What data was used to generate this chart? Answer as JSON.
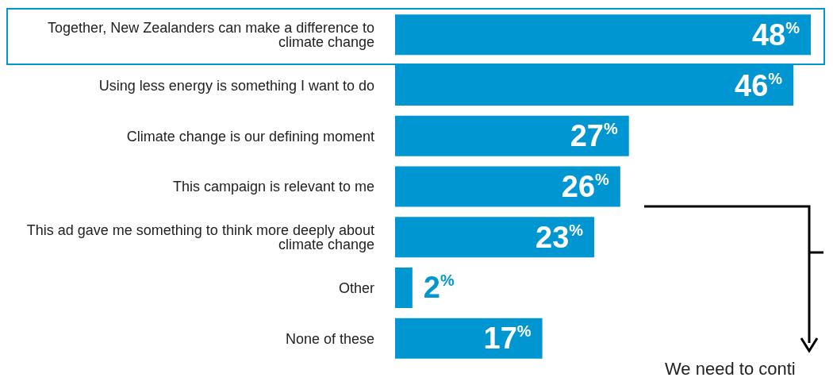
{
  "chart_data": {
    "type": "bar",
    "orientation": "horizontal",
    "categories": [
      "Together, New Zealanders can make a difference to climate change",
      "Using less energy is something I want to do",
      "Climate change is our defining moment",
      "This campaign is relevant to me",
      "This ad gave me something to think more deeply about climate change",
      "Other",
      "None of these"
    ],
    "values": [
      48,
      46,
      27,
      26,
      23,
      2,
      17
    ],
    "value_labels": [
      "48$^{%}$",
      "46$^{%}$",
      "27$^{%}$",
      "26$^{%}$",
      "23$^{%}$",
      "2$^{%}$",
      "17$^{%}$"
    ],
    "color": "#0096d2",
    "annotations": [
      "We need to conti"
    ]
  }
}
